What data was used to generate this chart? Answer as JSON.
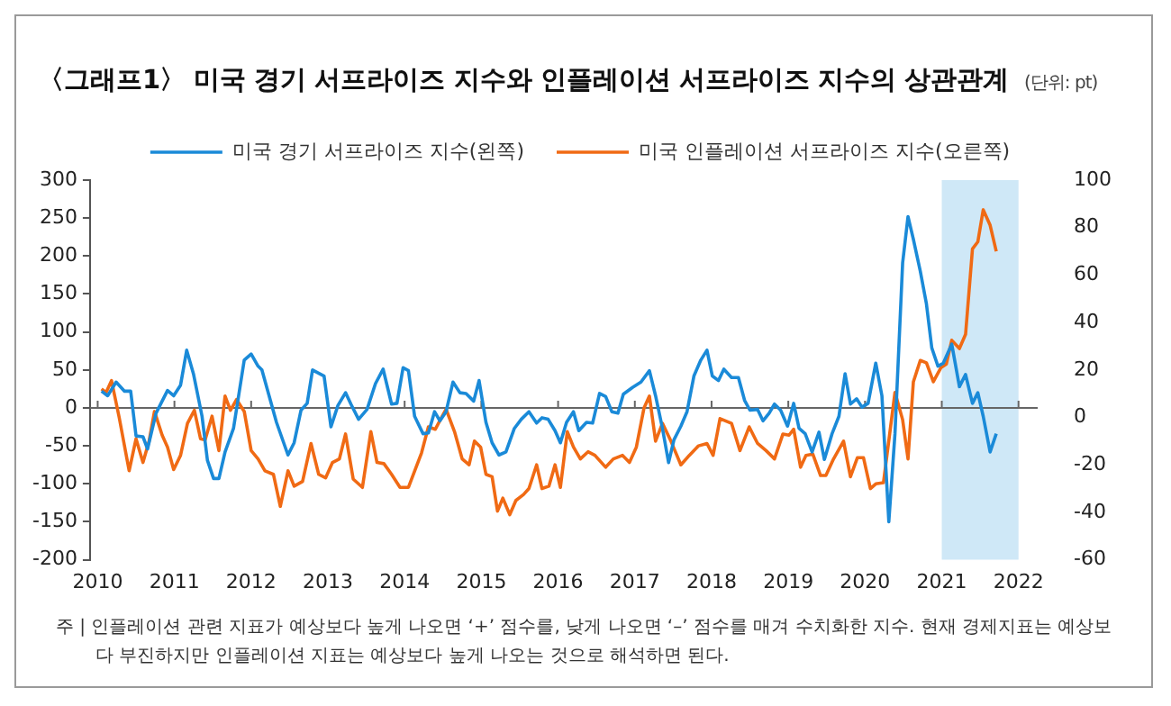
{
  "chart_data": {
    "type": "line",
    "title": "〈그래프1〉 미국 경기 서프라이즈 지수와 인플레이션 서프라이즈 지수의 상관관계",
    "subtitle": "(단위: pt)",
    "annotations": [
      "주 | 인플레이션 관련 지표가 예상보다 높게 나오면 ‘+’ 점수를, 낮게 나오면 ‘–’ 점수를 매겨 수치화한 지수. 현재 경제지표는 예상보다 부진하지만 인플레이션 지표는 예상보다 높게 나오는 것으로 해석하면 된다."
    ],
    "xlim": [
      2009.9,
      2022.25
    ],
    "xticks": [
      2010,
      2011,
      2012,
      2013,
      2014,
      2015,
      2016,
      2017,
      2018,
      2019,
      2020,
      2021,
      2022
    ],
    "ylim": [
      -200,
      300
    ],
    "yticks": [
      -200,
      -150,
      -100,
      -50,
      0,
      50,
      100,
      150,
      200,
      250,
      300
    ],
    "y2lim": [
      -60,
      100
    ],
    "y2ticks": [
      -60,
      -40,
      -20,
      0,
      20,
      40,
      60,
      80,
      100
    ],
    "grid": false,
    "legend": "top",
    "line_style": "solid",
    "marker": "none",
    "ref_lines": [
      {
        "axis": "y",
        "value": 0,
        "color": "#666666"
      }
    ],
    "bands": [
      {
        "axis": "x",
        "from": 2021,
        "to": 2022,
        "color": "#cfe8f7"
      }
    ],
    "series": [
      {
        "name": "미국 경기 서프라이즈 지수(왼쪽)",
        "color": "#1a8ad8",
        "x": [
          2010.05,
          2010.13,
          2010.24,
          2010.35,
          2010.43,
          2010.5,
          2010.59,
          2010.65,
          2010.76,
          2010.91,
          2010.99,
          2011.08,
          2011.16,
          2011.25,
          2011.36,
          2011.43,
          2011.51,
          2011.58,
          2011.66,
          2011.77,
          2011.91,
          2012.0,
          2012.09,
          2012.14,
          2012.33,
          2012.48,
          2012.56,
          2012.65,
          2012.73,
          2012.8,
          2012.95,
          2013.04,
          2013.13,
          2013.23,
          2013.3,
          2013.4,
          2013.51,
          2013.62,
          2013.72,
          2013.83,
          2013.9,
          2013.98,
          2014.05,
          2014.13,
          2014.24,
          2014.31,
          2014.39,
          2014.46,
          2014.54,
          2014.63,
          2014.72,
          2014.8,
          2014.9,
          2014.97,
          2015.06,
          2015.14,
          2015.23,
          2015.32,
          2015.43,
          2015.52,
          2015.62,
          2015.72,
          2015.79,
          2015.87,
          2015.96,
          2016.03,
          2016.11,
          2016.2,
          2016.27,
          2016.37,
          2016.45,
          2016.54,
          2016.62,
          2016.7,
          2016.78,
          2016.85,
          2016.97,
          2017.08,
          2017.19,
          2017.27,
          2017.36,
          2017.44,
          2017.51,
          2017.6,
          2017.68,
          2017.77,
          2017.86,
          2017.94,
          2018.01,
          2018.09,
          2018.16,
          2018.26,
          2018.35,
          2018.43,
          2018.5,
          2018.6,
          2018.67,
          2018.75,
          2018.82,
          2018.9,
          2018.99,
          2019.07,
          2019.14,
          2019.22,
          2019.31,
          2019.4,
          2019.47,
          2019.57,
          2019.66,
          2019.74,
          2019.81,
          2019.89,
          2019.96,
          2020.04,
          2020.14,
          2020.22,
          2020.31,
          2020.39,
          2020.49,
          2020.56,
          2020.63,
          2020.72,
          2020.8,
          2020.87,
          2020.95,
          2021.02,
          2021.13,
          2021.23,
          2021.31,
          2021.4,
          2021.47,
          2021.54,
          2021.63,
          2021.71
        ],
        "values": [
          22,
          16,
          34,
          22,
          22,
          -37,
          -38,
          -54,
          -7,
          23,
          16,
          30,
          76,
          44,
          -11,
          -69,
          -93,
          -93,
          -58,
          -27,
          63,
          71,
          55,
          50,
          -19,
          -62,
          -46,
          -3,
          6,
          50,
          42,
          -25,
          3,
          20,
          5,
          -15,
          -2,
          32,
          51,
          5,
          6,
          53,
          49,
          -11,
          -34,
          -33,
          -5,
          -17,
          -5,
          34,
          20,
          19,
          9,
          36,
          -19,
          -46,
          -62,
          -58,
          -27,
          -15,
          -5,
          -20,
          -13,
          -15,
          -30,
          -46,
          -19,
          -5,
          -30,
          -19,
          -20,
          19,
          15,
          -5,
          -7,
          18,
          27,
          34,
          49,
          16,
          -27,
          -72,
          -42,
          -24,
          -5,
          42,
          63,
          76,
          42,
          36,
          51,
          40,
          40,
          10,
          -3,
          -2,
          -17,
          -7,
          5,
          -3,
          -24,
          6,
          -27,
          -34,
          -58,
          -32,
          -68,
          -34,
          -11,
          45,
          5,
          12,
          1,
          6,
          59,
          16,
          -150,
          -34,
          191,
          252,
          222,
          180,
          137,
          79,
          55,
          59,
          84,
          28,
          44,
          6,
          20,
          -11,
          -58,
          -34
        ]
      },
      {
        "name": "미국 인플레이션 서프라이즈 지수(오른쪽)",
        "color": "#f06a14",
        "axis": "y2",
        "x": [
          2010.05,
          2010.11,
          2010.18,
          2010.28,
          2010.41,
          2010.5,
          2010.59,
          2010.67,
          2010.74,
          2010.84,
          2010.91,
          2010.99,
          2011.08,
          2011.17,
          2011.26,
          2011.34,
          2011.4,
          2011.49,
          2011.58,
          2011.66,
          2011.73,
          2011.81,
          2011.91,
          2012.0,
          2012.09,
          2012.18,
          2012.29,
          2012.38,
          2012.48,
          2012.56,
          2012.67,
          2012.78,
          2012.88,
          2012.97,
          2013.06,
          2013.15,
          2013.23,
          2013.33,
          2013.45,
          2013.56,
          2013.64,
          2013.73,
          2013.83,
          2013.94,
          2014.05,
          2014.22,
          2014.31,
          2014.4,
          2014.54,
          2014.65,
          2014.75,
          2014.84,
          2014.91,
          2014.99,
          2015.06,
          2015.14,
          2015.21,
          2015.28,
          2015.37,
          2015.45,
          2015.55,
          2015.62,
          2015.72,
          2015.79,
          2015.88,
          2015.96,
          2016.03,
          2016.12,
          2016.2,
          2016.29,
          2016.39,
          2016.48,
          2016.62,
          2016.72,
          2016.84,
          2016.93,
          2017.02,
          2017.12,
          2017.19,
          2017.27,
          2017.36,
          2017.47,
          2017.6,
          2017.71,
          2017.83,
          2017.94,
          2018.02,
          2018.11,
          2018.26,
          2018.37,
          2018.49,
          2018.6,
          2018.71,
          2018.82,
          2018.93,
          2019.01,
          2019.07,
          2019.16,
          2019.23,
          2019.32,
          2019.42,
          2019.49,
          2019.59,
          2019.72,
          2019.81,
          2019.9,
          2019.98,
          2020.07,
          2020.14,
          2020.24,
          2020.39,
          2020.49,
          2020.56,
          2020.63,
          2020.72,
          2020.8,
          2020.89,
          2020.99,
          2021.06,
          2021.13,
          2021.23,
          2021.31,
          2021.4,
          2021.47,
          2021.54,
          2021.63,
          2021.71
        ],
        "values": [
          12,
          10.5,
          15.5,
          0,
          -22.5,
          -9,
          -19,
          -10,
          2.5,
          -7.5,
          -12.5,
          -22,
          -16,
          -2.5,
          3,
          -9,
          -9.5,
          0.5,
          -14,
          9,
          3,
          7.5,
          2.5,
          -14,
          -17.5,
          -22.5,
          -24,
          -37.5,
          -22.5,
          -29,
          -27,
          -11,
          -24,
          -25.5,
          -19,
          -17.5,
          -7,
          -26,
          -29.5,
          -6,
          -19,
          -19.5,
          -24,
          -29.5,
          -29.5,
          -15,
          -4,
          -5,
          3.5,
          -6,
          -17.5,
          -20,
          -10,
          -12.5,
          -24,
          -25,
          -39.5,
          -34,
          -41,
          -35,
          -32.5,
          -30,
          -20,
          -30,
          -29,
          -20,
          -29.5,
          -6,
          -12.5,
          -17.5,
          -14.5,
          -16,
          -21,
          -17.5,
          -16,
          -19,
          -12.5,
          4,
          9,
          -10,
          -2.5,
          -10,
          -20,
          -16,
          -12,
          -11,
          -16,
          -0.5,
          -2.5,
          -14,
          -4,
          -11,
          -14,
          -17.5,
          -7,
          -7.5,
          -5,
          -21,
          -16,
          -15.5,
          -24.5,
          -24.5,
          -17.5,
          -10,
          -25,
          -17,
          -17,
          -30,
          -28,
          -27.5,
          10.5,
          -1,
          -17.5,
          15,
          24,
          23,
          15,
          21,
          22.5,
          32.5,
          29,
          35,
          71,
          74,
          87.5,
          81,
          70
        ]
      }
    ]
  }
}
